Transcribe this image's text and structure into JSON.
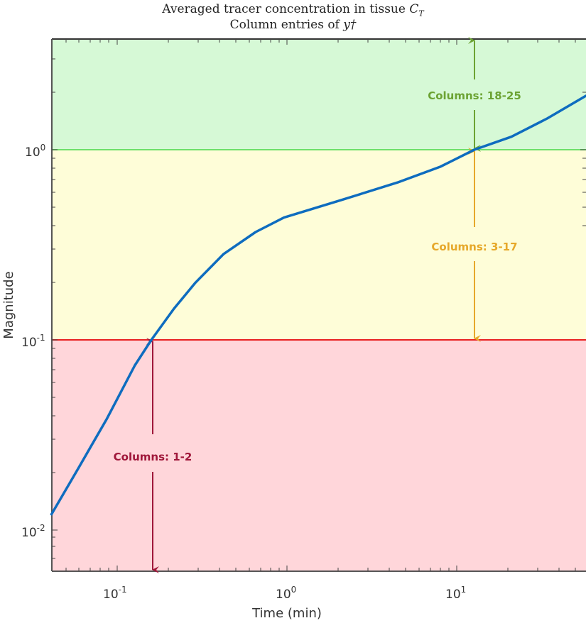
{
  "chart_data": {
    "type": "line",
    "title": "Averaged tracer concentration in tissue C_T",
    "subtitle": "Column entries of y†",
    "xlabel": "Time (min)",
    "ylabel": "Magnitude",
    "xscale": "log",
    "yscale": "log",
    "xlim": [
      0.041,
      57.6
    ],
    "ylim": [
      0.006,
      3.8
    ],
    "x_ticks": [
      "10^-1",
      "10^0",
      "10^1"
    ],
    "y_ticks": [
      "10^-2",
      "10^-1",
      "10^0"
    ],
    "grid": false,
    "series": [
      {
        "name": "Averaged tracer concentration",
        "color": "#0e6cbf",
        "x": [
          0.041,
          0.059,
          0.087,
          0.127,
          0.159,
          0.216,
          0.289,
          0.424,
          0.654,
          0.96,
          2.08,
          4.49,
          8.0,
          12.7,
          21.0,
          34.1,
          57.6
        ],
        "y": [
          0.0121,
          0.0211,
          0.0385,
          0.0734,
          0.1,
          0.146,
          0.2,
          0.283,
          0.369,
          0.44,
          0.543,
          0.673,
          0.814,
          1.0,
          1.17,
          1.46,
          1.92
        ]
      }
    ],
    "bands": [
      {
        "label": "Columns: 1-2",
        "from": 0.006,
        "to": 0.1,
        "fill": "#ffd6da",
        "text_color": "#a0173a",
        "arrow_x": 0.16
      },
      {
        "label": "Columns: 3-17",
        "from": 0.1,
        "to": 1.0,
        "fill": "#fefdd8",
        "text_color": "#e6a82a",
        "arrow_x": 12.7
      },
      {
        "label": "Columns: 18-25",
        "from": 1.0,
        "to": 3.8,
        "fill": "#d6f9d6",
        "text_color": "#6ca333",
        "arrow_x": 12.7
      }
    ],
    "threshold_lines": [
      {
        "y": 0.1,
        "color": "#e82020"
      },
      {
        "y": 1.0,
        "color": "#6ee06a"
      }
    ]
  },
  "labels": {
    "title_line1": "Averaged tracer concentration in tissue ",
    "title_sym": "C",
    "title_sub": "T",
    "title_line2": "Column entries of ",
    "title_sym2": "y†",
    "xlabel": "Time (min)",
    "ylabel": "Magnitude",
    "band1": "Columns: 1-2",
    "band2": "Columns: 3-17",
    "band3": "Columns: 18-25",
    "xt1_base": "10",
    "xt1_exp": "-1",
    "xt2_base": "10",
    "xt2_exp": "0",
    "xt3_base": "10",
    "xt3_exp": "1",
    "yt1_base": "10",
    "yt1_exp": "-2",
    "yt2_base": "10",
    "yt2_exp": "-1",
    "yt3_base": "10",
    "yt3_exp": "0"
  }
}
